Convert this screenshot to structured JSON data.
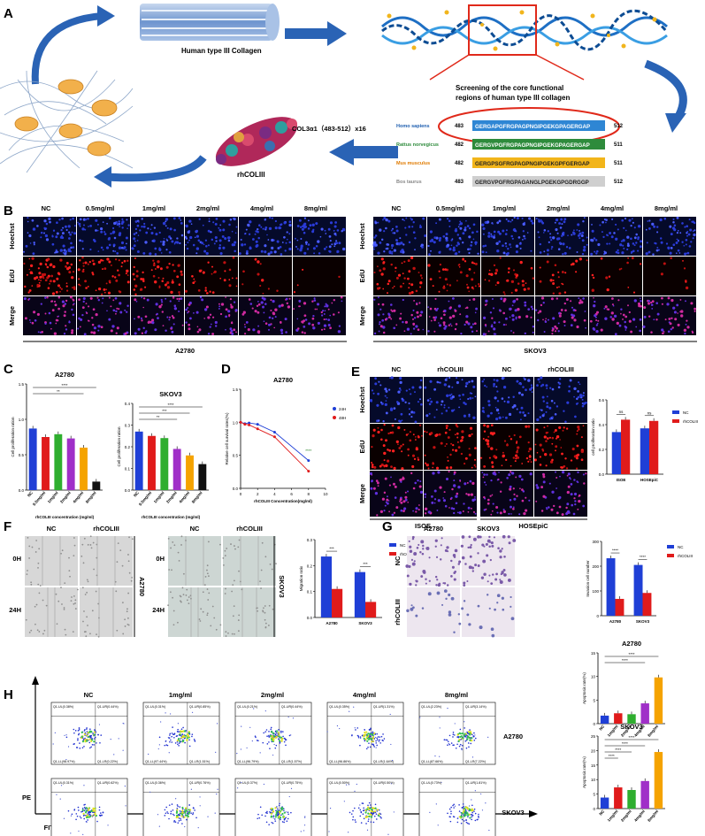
{
  "panels": [
    "A",
    "B",
    "C",
    "D",
    "E",
    "F",
    "G",
    "H"
  ],
  "panel_a": {
    "collagen_label": "Human type III Collagen",
    "screening_title_1": "Screening of the core functional",
    "screening_title_2": "regions of human type III collagen",
    "col_label": "COL3α1（483-512）x16",
    "rh_label": "rhCOLIII",
    "species": [
      {
        "name": "Homo sapiens",
        "start": "483",
        "seq": "GERGAPGFRGPAGPNGIPGEKGPAGERGAP",
        "end": "512",
        "bg": "#2e86d4",
        "fg": "#ffffff"
      },
      {
        "name": "Rattus norvegicus",
        "start": "482",
        "seq": "GERGVPGFRGPAGPNGIPGEKGPAGERGAP",
        "end": "511",
        "bg": "#2e8b3c",
        "fg": "#ffffff"
      },
      {
        "name": "Mus musculus",
        "start": "482",
        "seq": "GERGPSGFRGPAGPNGIPGEKGPFGERGAP",
        "end": "511",
        "bg": "#f2b51a",
        "fg": "#222222"
      },
      {
        "name": "Bos taurus",
        "start": "483",
        "seq": "GERGVPGFRGPAGANGLPGEKGPGDRGGP",
        "end": "512",
        "bg": "#cfcfcf",
        "fg": "#222222"
      }
    ],
    "species_colors": [
      "#1f5fb0",
      "#2e8b3c",
      "#e07b00",
      "#888888"
    ]
  },
  "panel_b": {
    "conc_cols": [
      "NC",
      "0.5mg/ml",
      "1mg/ml",
      "2mg/ml",
      "4mg/ml",
      "8mg/ml"
    ],
    "rows": [
      "Hoechst",
      "EdU",
      "Merge"
    ],
    "left_cell": "A2780",
    "right_cell": "SKOV3"
  },
  "panel_e": {
    "cols": [
      "NC",
      "rhCOLIII",
      "NC",
      "rhCOLIII"
    ],
    "rows": [
      "Hoechst",
      "EdU",
      "Merge"
    ],
    "groups": [
      "ISOE",
      "HOSEpiC"
    ]
  },
  "panel_f": {
    "cols": [
      "NC",
      "rhCOLIII"
    ],
    "rows": [
      "0H",
      "24H"
    ],
    "cells": [
      "A2780",
      "SKOV3"
    ]
  },
  "panel_g": {
    "cols": [
      "A2780",
      "SKOV3"
    ],
    "rows": [
      "NC",
      "rhCOLIII"
    ]
  },
  "panel_h": {
    "cols": [
      "NC",
      "1mg/ml",
      "2mg/ml",
      "4mg/ml",
      "8mg/ml"
    ],
    "rows": [
      "A2780",
      "SKOV3"
    ],
    "y_axis": "PE",
    "x_axis": "FITC",
    "quad_labels": [
      [
        "Q1-UL(0.38%)",
        "Q1-UR(0.44%)",
        "Q1-LL(98.97%)",
        "Q1-LR(0.22%)"
      ],
      [
        "Q1-UL(0.31%)",
        "Q1-UR(0.85%)",
        "Q1-LL(97.44%)",
        "Q1-LR(1.51%)"
      ],
      [
        "Q1-UL(0.21%)",
        "Q1-UR(0.44%)",
        "Q1-LL(96.79%)",
        "Q1-LR(1.57%)"
      ],
      [
        "Q1-UL(0.35%)",
        "Q1-UR(1.31%)",
        "Q1-LL(96.86%)",
        "Q1-LR(1.64%)"
      ],
      [
        "Q1-UL(2.23%)",
        "Q1-UR(3.14%)",
        "Q1-LL(87.66%)",
        "Q1-LR(7.22%)"
      ],
      [
        "Q1-UL(0.31%)",
        "Q1-UR(0.62%)",
        "Q1-LL(96.91%)",
        "Q1-LR(1.56%)"
      ],
      [
        "Q1-UL(0.36%)",
        "Q1-UR(0.76%)",
        "Q1-LL(91.58%)",
        "Q1-LR(6.31%)"
      ],
      [
        "Q1-UL(0.37%)",
        "Q1-UR(0.75%)",
        "Q1-LL(94.88%)",
        "Q1-LR(4.01%)"
      ],
      [
        "Q1-UL(0.50%)",
        "Q1-UR(0.50%)",
        "Q1-LL(90.47%)",
        "Q1-LR(5.97%)"
      ],
      [
        "Q1-UL(0.73%)",
        "Q1-UR(1.81%)",
        "Q1-LL(79.57%)",
        "Q1-LR(15.07%)"
      ]
    ]
  },
  "chart_data": [
    {
      "type": "bar",
      "panel": "C",
      "title": "A2780",
      "ylabel": "Cell proliferation ration",
      "xlabel": "rhCOLIII concentration (mg/ml)",
      "categories": [
        "NC",
        "0.5mg/ml",
        "1mg/ml",
        "2mg/ml",
        "4mg/ml",
        "8mg/ml"
      ],
      "values": [
        0.87,
        0.75,
        0.79,
        0.73,
        0.6,
        0.12
      ],
      "ylim": [
        0,
        1.5
      ],
      "yticks": [
        "0.0",
        "0.5",
        "1.0",
        "1.5"
      ],
      "colors": [
        "#1f3fd6",
        "#e01b1b",
        "#2fae2f",
        "#a02fc8",
        "#f5a300",
        "#111111"
      ],
      "annotations": [
        "****",
        "**"
      ]
    },
    {
      "type": "bar",
      "panel": "C",
      "title": "SKOV3",
      "ylabel": "Cell proliferation ration",
      "xlabel": "rhCOLIII concentration (mg/ml)",
      "categories": [
        "NC",
        "0.5mg/ml",
        "1mg/ml",
        "2mg/ml",
        "4mg/ml",
        "8mg/ml"
      ],
      "values": [
        0.27,
        0.25,
        0.24,
        0.19,
        0.16,
        0.12
      ],
      "ylim": [
        0,
        0.4
      ],
      "yticks": [
        "0.0",
        "0.1",
        "0.2",
        "0.3",
        "0.4"
      ],
      "colors": [
        "#1f3fd6",
        "#e01b1b",
        "#2fae2f",
        "#a02fc8",
        "#f5a300",
        "#111111"
      ],
      "annotations": [
        "****",
        "***",
        "**"
      ]
    },
    {
      "type": "line",
      "panel": "D",
      "title": "A2780",
      "ylabel": "Relative cell survival rates(%)",
      "xlabel": "rhCOLIII  Concentration(mg/ml)",
      "x": [
        0,
        0.5,
        1,
        2,
        4,
        8
      ],
      "xlim": [
        0,
        10
      ],
      "xticks": [
        "0",
        "2",
        "4",
        "6",
        "8",
        "10"
      ],
      "ylim": [
        0,
        1.5
      ],
      "yticks": [
        "0.0",
        "0.5",
        "1.0",
        "1.5"
      ],
      "series": [
        {
          "name": "24H",
          "values": [
            1.0,
            0.98,
            0.99,
            0.97,
            0.85,
            0.42
          ],
          "color": "#1f3fd6"
        },
        {
          "name": "48H",
          "values": [
            1.0,
            0.97,
            0.96,
            0.9,
            0.78,
            0.26
          ],
          "color": "#e01b1b"
        }
      ],
      "annotations": [
        "****"
      ]
    },
    {
      "type": "bar",
      "panel": "E",
      "ylabel": "cell proliferation ratio",
      "categories": [
        "ISOE",
        "HOSEpiC"
      ],
      "ylim": [
        0,
        0.6
      ],
      "yticks": [
        "0.0",
        "0.2",
        "0.4",
        "0.6"
      ],
      "series": [
        {
          "name": "NC",
          "values": [
            0.34,
            0.37
          ],
          "color": "#1f3fd6"
        },
        {
          "name": "rhCOLIII",
          "values": [
            0.44,
            0.43
          ],
          "color": "#e01b1b"
        }
      ],
      "annotations": [
        "ns",
        "ns"
      ]
    },
    {
      "type": "bar",
      "panel": "F",
      "ylabel": "Migration ratio",
      "categories": [
        "A2780",
        "SKOV3"
      ],
      "ylim": [
        0,
        0.3
      ],
      "yticks": [
        "0.0",
        "0.1",
        "0.2",
        "0.3"
      ],
      "series": [
        {
          "name": "NC",
          "values": [
            0.235,
            0.175
          ],
          "color": "#1f3fd6"
        },
        {
          "name": "rhCOLIII",
          "values": [
            0.11,
            0.06
          ],
          "color": "#e01b1b"
        }
      ],
      "annotations": [
        "***",
        "***"
      ]
    },
    {
      "type": "bar",
      "panel": "G",
      "ylabel": "Invasion cell number",
      "categories": [
        "A2780",
        "SKOV3"
      ],
      "ylim": [
        0,
        300
      ],
      "yticks": [
        "0",
        "100",
        "200",
        "300"
      ],
      "series": [
        {
          "name": "NC",
          "values": [
            232,
            205
          ],
          "color": "#1f3fd6"
        },
        {
          "name": "rhCOLIII",
          "values": [
            68,
            92
          ],
          "color": "#e01b1b"
        }
      ],
      "annotations": [
        "****",
        "****"
      ]
    },
    {
      "type": "bar",
      "panel": "H",
      "title": "A2780",
      "ylabel": "Apoptosis rate(%)",
      "categories": [
        "NC",
        "1mg/ml",
        "2mg/ml",
        "4mg/ml",
        "8mg/ml"
      ],
      "values": [
        1.7,
        2.2,
        2.0,
        4.3,
        9.8
      ],
      "ylim": [
        0,
        15
      ],
      "yticks": [
        "0",
        "5",
        "10",
        "15"
      ],
      "colors": [
        "#1f3fd6",
        "#e01b1b",
        "#2fae2f",
        "#a02fc8",
        "#f5a300"
      ],
      "annotations": [
        "****",
        "****"
      ]
    },
    {
      "type": "bar",
      "panel": "H",
      "title": "SKOV3",
      "ylabel": "Apoptosis rate(%)",
      "categories": [
        "NC",
        "1mg/ml",
        "2mg/ml",
        "4mg/ml",
        "8mg/ml"
      ],
      "values": [
        3.8,
        7.3,
        6.4,
        9.5,
        19.5
      ],
      "ylim": [
        0,
        25
      ],
      "yticks": [
        "0",
        "5",
        "10",
        "15",
        "20",
        "25"
      ],
      "colors": [
        "#1f3fd6",
        "#e01b1b",
        "#2fae2f",
        "#a02fc8",
        "#f5a300"
      ],
      "annotations": [
        "****",
        "****",
        "****",
        "****"
      ]
    }
  ]
}
